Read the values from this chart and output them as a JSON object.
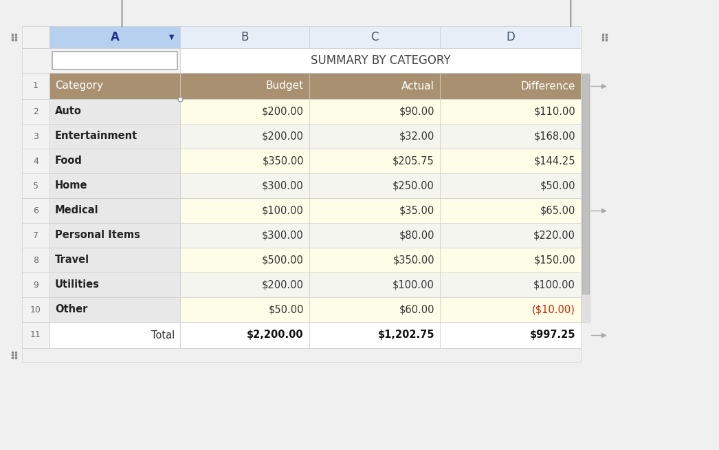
{
  "title": "SUMMARY BY CATEGORY",
  "col_header_labels": [
    "",
    "A",
    "B",
    "C",
    "D"
  ],
  "row_header_labels": [
    "Category",
    "Budget",
    "Actual",
    "Difference"
  ],
  "rows": [
    [
      "Auto",
      "$200.00",
      "$90.00",
      "$110.00"
    ],
    [
      "Entertainment",
      "$200.00",
      "$32.00",
      "$168.00"
    ],
    [
      "Food",
      "$350.00",
      "$205.75",
      "$144.25"
    ],
    [
      "Home",
      "$300.00",
      "$250.00",
      "$50.00"
    ],
    [
      "Medical",
      "$100.00",
      "$35.00",
      "$65.00"
    ],
    [
      "Personal Items",
      "$300.00",
      "$80.00",
      "$220.00"
    ],
    [
      "Travel",
      "$500.00",
      "$350.00",
      "$150.00"
    ],
    [
      "Utilities",
      "$200.00",
      "$100.00",
      "$100.00"
    ],
    [
      "Other",
      "$50.00",
      "$60.00",
      "($10.00)"
    ]
  ],
  "footer": [
    "Total",
    "$2,200.00",
    "$1,202.75",
    "$997.25"
  ],
  "header_bg": "#a89070",
  "header_text": "#ffffff",
  "col_A_body_bg": "#e8e8e8",
  "even_row_bg": "#fefee8",
  "odd_row_bg": "#f5f5ef",
  "footer_bg": "#ffffff",
  "negative_color": "#cc2200",
  "col_header_A_bg": "#b8d0f0",
  "col_header_other_bg": "#e8eef8",
  "col_header_text_A": "#223388",
  "col_header_text_other": "#445566",
  "title_text": "#444444",
  "border_color": "#cccccc",
  "row_num_bg": "#f2f2f2",
  "row_num_text": "#666666",
  "bg_color": "#f0f0f0",
  "scrollbar_bg": "#e0e0e0",
  "scrollbar_thumb": "#c0c0c0",
  "handle_line_color": "#888888",
  "handle_arrow_color": "#aaaaaa"
}
